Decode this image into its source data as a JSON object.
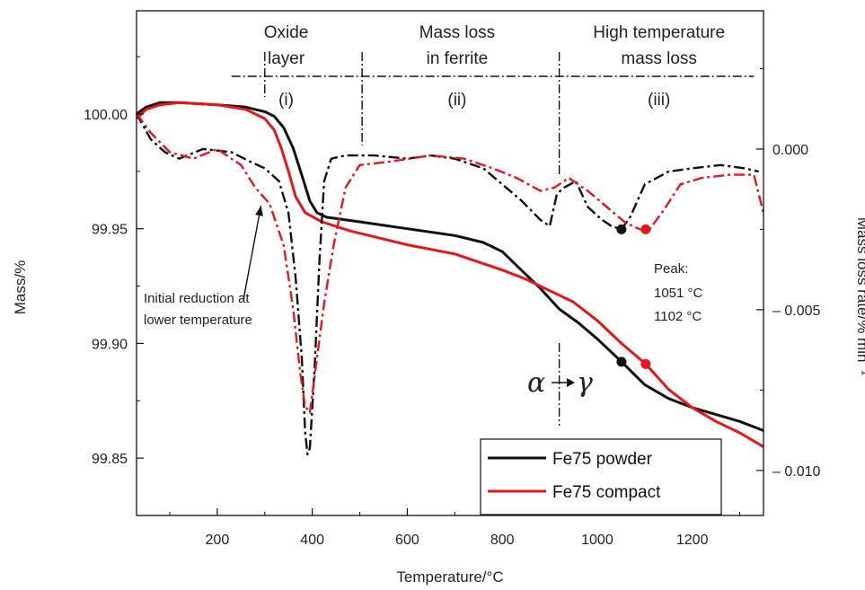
{
  "chart_data": {
    "type": "line",
    "xlabel": "Temperature/°C",
    "ylabel_left": "Mass/%",
    "ylabel_right": "Mass loss rate/% min⁻¹",
    "xlim": [
      30,
      1350
    ],
    "ylim_left": [
      99.825,
      100.045
    ],
    "ylim_right": [
      -0.0114,
      0.0043
    ],
    "x_ticks": [
      200,
      400,
      600,
      800,
      1000,
      1200
    ],
    "x_tick_labels": [
      "200",
      "400",
      "600",
      "800",
      "1000",
      "1200"
    ],
    "y_left_ticks": [
      99.85,
      99.9,
      99.95,
      100.0
    ],
    "y_left_tick_labels": [
      "99.85",
      "99.90",
      "99.95",
      "100.00"
    ],
    "y_right_ticks": [
      0.0,
      -0.005,
      -0.01
    ],
    "y_right_tick_labels": [
      "0.000",
      "– 0.005",
      "– 0.010"
    ],
    "regions": [
      {
        "title_lines": [
          "Oxide",
          "layer"
        ],
        "numeral": "(i)",
        "center_x": 345,
        "title_x": 345
      },
      {
        "title_lines": [
          "Mass loss",
          "in ferrite"
        ],
        "numeral": "(ii)",
        "center_x": 705,
        "title_x": 705
      },
      {
        "title_lines": [
          "High temperature",
          "mass loss"
        ],
        "numeral": "(iii)",
        "center_x": 1130,
        "title_x": 1130
      }
    ],
    "boundaries": [
      300,
      505,
      920
    ],
    "region_band_xrange": [
      230,
      1330
    ],
    "annotation": {
      "lines": [
        "Initial reduction at",
        "lower temperature"
      ],
      "arrow_from": [
        255,
        99.919
      ],
      "arrow_to": [
        292,
        99.96
      ]
    },
    "peak_label": "Peak:",
    "peaks": [
      {
        "label": "1051 °C",
        "color": "#111111",
        "x": 1051,
        "mass": 99.892,
        "rate": -0.0025
      },
      {
        "label": "1102 °C",
        "color": "#e8151b",
        "x": 1102,
        "mass": 99.891,
        "rate": -0.0025
      }
    ],
    "transition": {
      "alpha": "α",
      "gamma": "γ",
      "x": 920
    },
    "legend_position": "bottom-right",
    "series": [
      {
        "name": "Fe75 powder",
        "kind": "mass",
        "axis": "left",
        "color": "#111111",
        "points": [
          [
            30,
            100.0
          ],
          [
            50,
            100.003
          ],
          [
            80,
            100.005
          ],
          [
            120,
            100.005
          ],
          [
            200,
            100.004
          ],
          [
            260,
            100.003
          ],
          [
            300,
            100.001
          ],
          [
            320,
            99.999
          ],
          [
            340,
            99.994
          ],
          [
            360,
            99.985
          ],
          [
            380,
            99.972
          ],
          [
            395,
            99.962
          ],
          [
            410,
            99.957
          ],
          [
            430,
            99.955
          ],
          [
            500,
            99.953
          ],
          [
            600,
            99.95
          ],
          [
            700,
            99.947
          ],
          [
            760,
            99.944
          ],
          [
            800,
            99.94
          ],
          [
            840,
            99.932
          ],
          [
            880,
            99.924
          ],
          [
            920,
            99.915
          ],
          [
            960,
            99.909
          ],
          [
            1000,
            99.902
          ],
          [
            1051,
            99.892
          ],
          [
            1100,
            99.882
          ],
          [
            1150,
            99.876
          ],
          [
            1200,
            99.872
          ],
          [
            1250,
            99.869
          ],
          [
            1300,
            99.866
          ],
          [
            1350,
            99.862
          ]
        ]
      },
      {
        "name": "Fe75 compact",
        "kind": "mass",
        "axis": "left",
        "color": "#e8151b",
        "points": [
          [
            30,
            99.998
          ],
          [
            50,
            100.002
          ],
          [
            80,
            100.004
          ],
          [
            120,
            100.005
          ],
          [
            200,
            100.004
          ],
          [
            260,
            100.002
          ],
          [
            300,
            99.998
          ],
          [
            320,
            99.993
          ],
          [
            335,
            99.985
          ],
          [
            350,
            99.975
          ],
          [
            365,
            99.964
          ],
          [
            385,
            99.957
          ],
          [
            420,
            99.953
          ],
          [
            480,
            99.949
          ],
          [
            600,
            99.943
          ],
          [
            700,
            99.939
          ],
          [
            800,
            99.932
          ],
          [
            850,
            99.928
          ],
          [
            900,
            99.923
          ],
          [
            950,
            99.918
          ],
          [
            1000,
            99.91
          ],
          [
            1051,
            99.9
          ],
          [
            1102,
            99.891
          ],
          [
            1150,
            99.88
          ],
          [
            1200,
            99.872
          ],
          [
            1250,
            99.866
          ],
          [
            1300,
            99.861
          ],
          [
            1350,
            99.855
          ]
        ]
      },
      {
        "name": "Fe75 powder rate",
        "kind": "rate",
        "axis": "right",
        "color": "#111111",
        "points": [
          [
            30,
            0.0011
          ],
          [
            60,
            0.0003
          ],
          [
            90,
            -0.0001
          ],
          [
            120,
            -0.0003
          ],
          [
            170,
            0.0
          ],
          [
            230,
            -0.0001
          ],
          [
            270,
            -0.0004
          ],
          [
            300,
            -0.0006
          ],
          [
            330,
            -0.001
          ],
          [
            350,
            -0.002
          ],
          [
            365,
            -0.004
          ],
          [
            378,
            -0.0065
          ],
          [
            385,
            -0.0088
          ],
          [
            390,
            -0.0095
          ],
          [
            395,
            -0.0093
          ],
          [
            405,
            -0.0068
          ],
          [
            415,
            -0.0035
          ],
          [
            425,
            -0.001
          ],
          [
            440,
            -0.0003
          ],
          [
            470,
            -0.0002
          ],
          [
            530,
            -0.0002
          ],
          [
            600,
            -0.0003
          ],
          [
            650,
            -0.0002
          ],
          [
            700,
            -0.0003
          ],
          [
            760,
            -0.0006
          ],
          [
            800,
            -0.0011
          ],
          [
            840,
            -0.0016
          ],
          [
            880,
            -0.0022
          ],
          [
            900,
            -0.0024
          ],
          [
            915,
            -0.0014
          ],
          [
            930,
            -0.0012
          ],
          [
            955,
            -0.001
          ],
          [
            980,
            -0.0018
          ],
          [
            1010,
            -0.0022
          ],
          [
            1030,
            -0.0024
          ],
          [
            1051,
            -0.0025
          ],
          [
            1070,
            -0.0021
          ],
          [
            1100,
            -0.0011
          ],
          [
            1150,
            -0.0007
          ],
          [
            1200,
            -0.0006
          ],
          [
            1260,
            -0.0005
          ],
          [
            1310,
            -0.0006
          ],
          [
            1340,
            -0.0007
          ]
        ]
      },
      {
        "name": "Fe75 compact rate",
        "kind": "rate",
        "axis": "right",
        "color": "#e8151b",
        "points": [
          [
            30,
            0.0011
          ],
          [
            60,
            0.0005
          ],
          [
            100,
            -0.0001
          ],
          [
            150,
            -0.0003
          ],
          [
            200,
            0.0
          ],
          [
            250,
            -0.0005
          ],
          [
            280,
            -0.0012
          ],
          [
            310,
            -0.0017
          ],
          [
            340,
            -0.003
          ],
          [
            360,
            -0.005
          ],
          [
            375,
            -0.007
          ],
          [
            385,
            -0.008
          ],
          [
            395,
            -0.0082
          ],
          [
            410,
            -0.0065
          ],
          [
            425,
            -0.0048
          ],
          [
            445,
            -0.003
          ],
          [
            470,
            -0.0012
          ],
          [
            500,
            -0.0005
          ],
          [
            560,
            -0.0004
          ],
          [
            650,
            -0.0002
          ],
          [
            720,
            -0.0003
          ],
          [
            780,
            -0.0006
          ],
          [
            830,
            -0.0009
          ],
          [
            880,
            -0.0013
          ],
          [
            910,
            -0.0012
          ],
          [
            940,
            -0.0009
          ],
          [
            980,
            -0.0013
          ],
          [
            1020,
            -0.0018
          ],
          [
            1060,
            -0.0023
          ],
          [
            1090,
            -0.0025
          ],
          [
            1110,
            -0.0025
          ],
          [
            1140,
            -0.0019
          ],
          [
            1175,
            -0.0011
          ],
          [
            1220,
            -0.0009
          ],
          [
            1280,
            -0.0008
          ],
          [
            1330,
            -0.0008
          ],
          [
            1350,
            -0.002
          ]
        ]
      }
    ]
  }
}
